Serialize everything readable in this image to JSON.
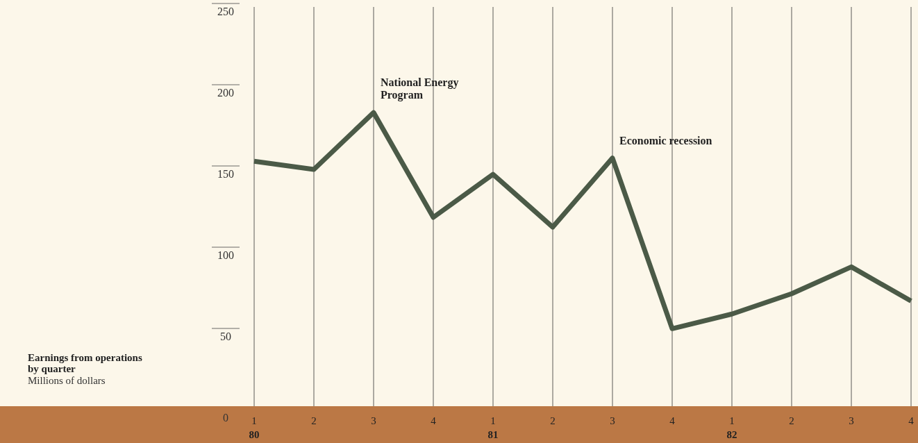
{
  "chart_data": {
    "type": "line",
    "title": "Earnings from operations by quarter",
    "subtitle": "Millions of dollars",
    "categories": [
      "1",
      "2",
      "3",
      "4",
      "1",
      "2",
      "3",
      "4",
      "1",
      "2",
      "3",
      "4"
    ],
    "series": [
      {
        "color": "#4b5a47",
        "values": [
          158,
          153,
          188,
          123.5,
          150,
          117.5,
          160,
          55,
          64,
          76.5,
          93,
          72
        ]
      }
    ],
    "ylim": [
      0,
      253
    ],
    "yticks": [
      0,
      50,
      100,
      150,
      200,
      250
    ],
    "grid": "x",
    "marker": "none",
    "line_style": "solid",
    "annotations": [
      "National Energy Program",
      "Economic recession",
      "80",
      "81",
      "82"
    ]
  }
}
